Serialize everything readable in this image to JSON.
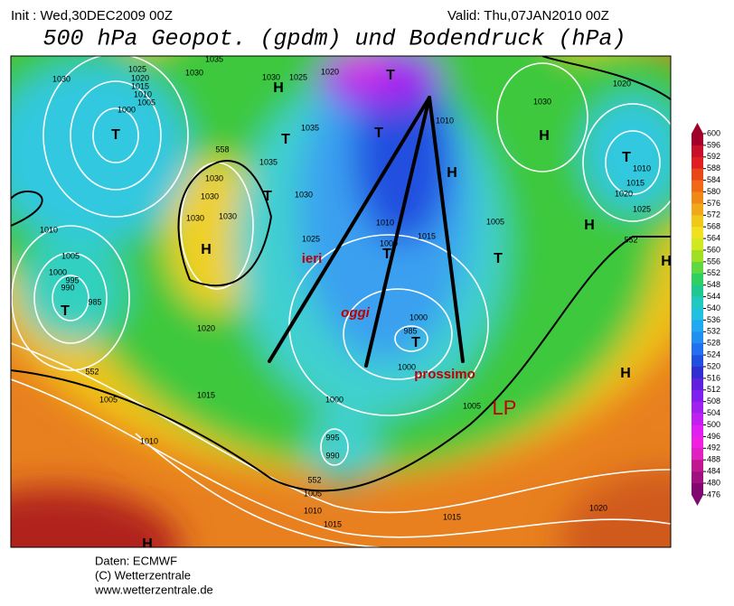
{
  "header": {
    "init": "Init : Wed,30DEC2009 00Z",
    "valid": "Valid: Thu,07JAN2010 00Z",
    "title": "500 hPa Geopot. (gpdm) und Bodendruck (hPa)"
  },
  "map_labels": [
    "1030",
    "1025",
    "1020",
    "1015",
    "1010",
    "1005",
    "1000",
    "T",
    "1030",
    "1035",
    "1030",
    "H",
    "1025",
    "1020",
    "T",
    "1035",
    "T",
    "T",
    "1010",
    "558",
    "1035",
    "1030",
    "1030",
    "T",
    "1030",
    "1030",
    "1030",
    "H",
    "1025",
    "1010",
    "1015",
    "1005",
    "H",
    "T",
    "1010",
    "1005",
    "1000",
    "995",
    "990",
    "985",
    "T",
    "1000",
    "985",
    "T",
    "1020",
    "552",
    "1005",
    "1015",
    "1010",
    "1000",
    "1000",
    "1005",
    "995",
    "990",
    "552",
    "1005",
    "1010",
    "1015",
    "1015",
    "1020",
    "H",
    "1020",
    "H",
    "T",
    "1010",
    "1015",
    "1020",
    "1025",
    "H",
    "552",
    "H",
    "H",
    "1030",
    "1000",
    "T"
  ],
  "annotations": {
    "ieri": "ieri",
    "oggi": "oggi",
    "prossimo": "prossimo",
    "lp": "LP"
  },
  "colorbar": {
    "ticks": [
      600,
      596,
      592,
      588,
      584,
      580,
      576,
      572,
      568,
      564,
      560,
      556,
      552,
      548,
      544,
      540,
      536,
      532,
      528,
      524,
      520,
      516,
      512,
      508,
      504,
      500,
      496,
      492,
      488,
      484,
      480,
      476
    ],
    "colors": [
      "#a0002a",
      "#c8102a",
      "#e02020",
      "#e84818",
      "#f06818",
      "#f08818",
      "#f0a818",
      "#f0c818",
      "#f0e020",
      "#d0e820",
      "#a0e020",
      "#60d840",
      "#30d060",
      "#20c890",
      "#20c8c0",
      "#20c0e0",
      "#20a8f0",
      "#2090f0",
      "#2070f0",
      "#2050e0",
      "#3030d0",
      "#6020e0",
      "#8020f0",
      "#a020f0",
      "#c020f0",
      "#e020f0",
      "#f020e0",
      "#e020c0",
      "#c01890",
      "#a01080",
      "#800870"
    ]
  },
  "footer": {
    "line1": "Daten: ECMWF",
    "line2": "(C) Wetterzentrale",
    "line3": "www.wetterzentrale.de"
  }
}
